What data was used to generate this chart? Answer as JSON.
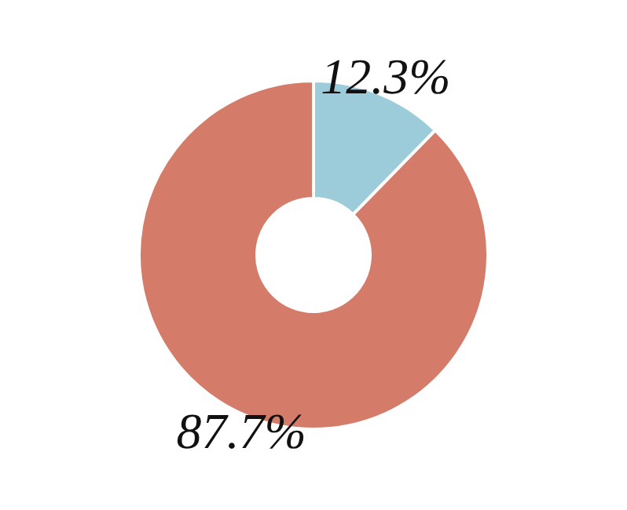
{
  "chart_data": {
    "type": "donut",
    "categories": [
      null,
      null
    ],
    "values": [
      12.3,
      87.7
    ],
    "colors": [
      "#9ccbd9",
      "#d47b6a"
    ],
    "value_labels": [
      "12.3%",
      "87.7%"
    ]
  }
}
